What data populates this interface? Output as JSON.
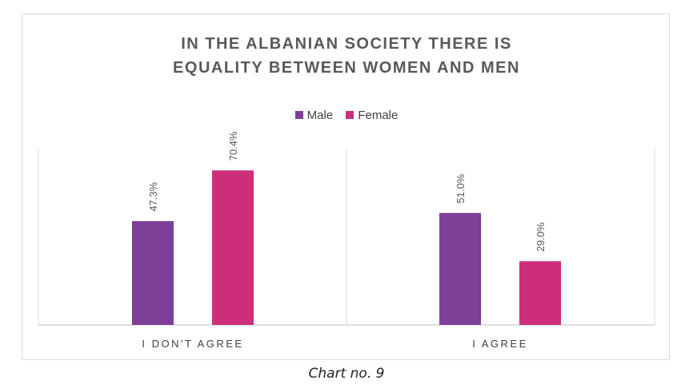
{
  "chart_data": {
    "type": "bar",
    "title_lines": [
      "IN THE ALBANIAN SOCIETY THERE IS",
      "EQUALITY BETWEEN WOMEN AND MEN"
    ],
    "categories": [
      "I DON'T AGREE",
      "I AGREE"
    ],
    "series": [
      {
        "name": "Male",
        "values": [
          47.3,
          51.0
        ],
        "labels": [
          "47.3%",
          "51.0%"
        ],
        "color": "#7e3f98"
      },
      {
        "name": "Female",
        "values": [
          70.4,
          29.0
        ],
        "labels": [
          "70.4%",
          "29.0%"
        ],
        "color": "#cc2e7a"
      }
    ],
    "ylim": [
      0,
      80
    ],
    "legend_position": "top",
    "grid": false
  },
  "caption": "Chart no. 9",
  "colors": {
    "axis": "#bfbfbf",
    "label": "#595959",
    "divider": "#d9d9d9"
  }
}
